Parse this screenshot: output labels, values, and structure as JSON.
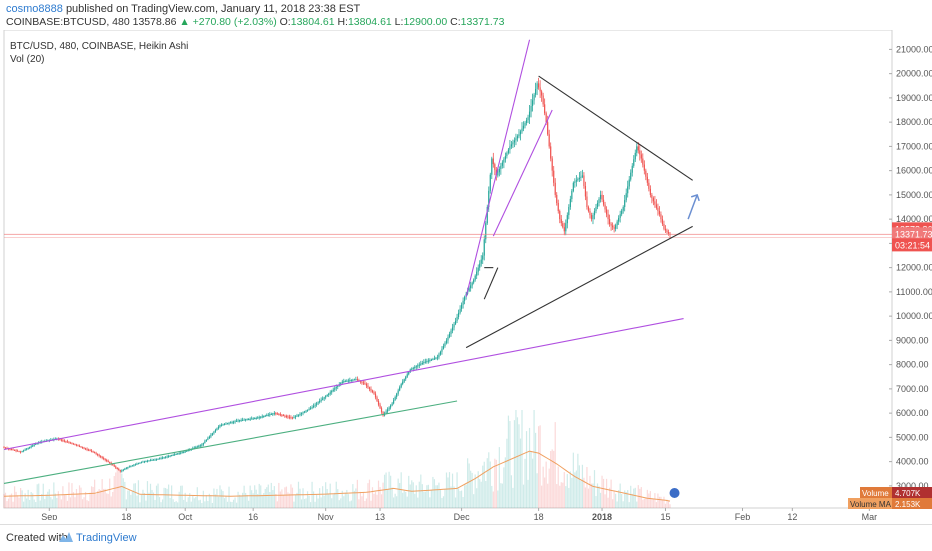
{
  "header": {
    "author": "cosmo8888",
    "published": "published on TradingView.com, January 11, 2018 23:38 EST",
    "symbol": "COINBASE:BTCUSD, 480",
    "price": "13578.86",
    "change": "▲ +270.80 (+2.03%)",
    "open_label": "O:",
    "open": "13804.61",
    "high_label": "H:",
    "high": "13804.61",
    "low_label": "L:",
    "low": "12900.00",
    "close_label": "C:",
    "close": "13371.73"
  },
  "legend": {
    "title": "BTC/USD, 480, COINBASE, Heikin Ashi",
    "vol": "Vol (20)"
  },
  "price_badges": {
    "last": "13578.86",
    "close": "13371.73",
    "timer": "03:21:54"
  },
  "vol_badges": {
    "volume_label": "Volume",
    "volume_value": "4.707K",
    "ma_label": "Volume MA",
    "ma_value": "2.153K"
  },
  "footer": {
    "created_with": "Created with",
    "brand": "TradingView"
  },
  "colors": {
    "up": "#26a69a",
    "down": "#ef5350",
    "trend_purple": "#b04fe0",
    "trend_green": "#4caf80",
    "trend_black": "#333333",
    "arrow": "#6b8fd1"
  },
  "chart_data": {
    "type": "candlestick",
    "title": "BTC/USD, 480, COINBASE, Heikin Ashi",
    "y_ticks": [
      3000,
      4000,
      5000,
      6000,
      7000,
      8000,
      9000,
      10000,
      11000,
      12000,
      13000,
      14000,
      15000,
      16000,
      17000,
      18000,
      19000,
      20000,
      21000
    ],
    "y_tick_labels": [
      "3000.00",
      "4000.00",
      "5000.00",
      "6000.00",
      "7000.00",
      "8000.00",
      "9000.00",
      "10000.00",
      "11000.00",
      "12000.00",
      "13000.00",
      "14000.00",
      "15000.00",
      "16000.00",
      "17000.00",
      "18000.00",
      "19000.00",
      "20000.00",
      "21000.00"
    ],
    "ylim": [
      2500,
      21800
    ],
    "x_ticks": [
      {
        "label": "Sep",
        "day": 10
      },
      {
        "label": "18",
        "day": 27
      },
      {
        "label": "Oct",
        "day": 40
      },
      {
        "label": "16",
        "day": 55
      },
      {
        "label": "Nov",
        "day": 71
      },
      {
        "label": "13",
        "day": 83
      },
      {
        "label": "Dec",
        "day": 101
      },
      {
        "label": "18",
        "day": 118
      },
      {
        "label": "2018",
        "day": 132
      },
      {
        "label": "15",
        "day": 146
      },
      {
        "label": "Feb",
        "day": 163
      },
      {
        "label": "12",
        "day": 174
      },
      {
        "label": "Mar",
        "day": 191
      }
    ],
    "xlim": [
      0,
      196
    ],
    "price_path": [
      [
        0,
        4600
      ],
      [
        4,
        4400
      ],
      [
        8,
        4800
      ],
      [
        12,
        4950
      ],
      [
        16,
        4700
      ],
      [
        20,
        4400
      ],
      [
        24,
        3900
      ],
      [
        26,
        3600
      ],
      [
        28,
        3800
      ],
      [
        31,
        4000
      ],
      [
        34,
        4100
      ],
      [
        37,
        4250
      ],
      [
        40,
        4400
      ],
      [
        44,
        4700
      ],
      [
        48,
        5500
      ],
      [
        52,
        5700
      ],
      [
        56,
        5800
      ],
      [
        60,
        6000
      ],
      [
        64,
        5800
      ],
      [
        68,
        6200
      ],
      [
        72,
        6800
      ],
      [
        75,
        7300
      ],
      [
        78,
        7400
      ],
      [
        80,
        7200
      ],
      [
        82,
        6800
      ],
      [
        84,
        5900
      ],
      [
        86,
        6400
      ],
      [
        88,
        7200
      ],
      [
        90,
        7800
      ],
      [
        93,
        8100
      ],
      [
        96,
        8300
      ],
      [
        98,
        9000
      ],
      [
        100,
        9800
      ],
      [
        102,
        10800
      ],
      [
        104,
        11500
      ],
      [
        106,
        12500
      ],
      [
        107,
        14500
      ],
      [
        108,
        16500
      ],
      [
        109,
        15800
      ],
      [
        110,
        16200
      ],
      [
        112,
        17000
      ],
      [
        114,
        17500
      ],
      [
        116,
        18200
      ],
      [
        118,
        19600
      ],
      [
        119,
        19100
      ],
      [
        120,
        18000
      ],
      [
        121,
        16500
      ],
      [
        122,
        15000
      ],
      [
        123,
        14000
      ],
      [
        124,
        13500
      ],
      [
        126,
        15500
      ],
      [
        128,
        15800
      ],
      [
        129,
        14500
      ],
      [
        130,
        14000
      ],
      [
        132,
        15000
      ],
      [
        134,
        13800
      ],
      [
        135,
        13600
      ],
      [
        137,
        14500
      ],
      [
        139,
        16200
      ],
      [
        140,
        17000
      ],
      [
        141,
        16500
      ],
      [
        143,
        15000
      ],
      [
        145,
        14200
      ],
      [
        146,
        13600
      ],
      [
        147,
        13400
      ]
    ],
    "volume_ma_path": [
      [
        0,
        0.12
      ],
      [
        10,
        0.13
      ],
      [
        20,
        0.15
      ],
      [
        26,
        0.22
      ],
      [
        30,
        0.14
      ],
      [
        40,
        0.13
      ],
      [
        50,
        0.12
      ],
      [
        60,
        0.13
      ],
      [
        70,
        0.14
      ],
      [
        80,
        0.16
      ],
      [
        86,
        0.2
      ],
      [
        90,
        0.17
      ],
      [
        100,
        0.2
      ],
      [
        104,
        0.3
      ],
      [
        108,
        0.42
      ],
      [
        112,
        0.5
      ],
      [
        116,
        0.58
      ],
      [
        118,
        0.56
      ],
      [
        122,
        0.45
      ],
      [
        126,
        0.32
      ],
      [
        130,
        0.22
      ],
      [
        136,
        0.16
      ],
      [
        142,
        0.1
      ],
      [
        146,
        0.08
      ],
      [
        147,
        0.07
      ]
    ],
    "trendlines": [
      {
        "from": [
          0,
          4500
        ],
        "to": [
          150,
          9900
        ],
        "color": "trend_purple"
      },
      {
        "from": [
          0,
          3100
        ],
        "to": [
          100,
          6500
        ],
        "color": "trend_green"
      },
      {
        "from": [
          102,
          10800
        ],
        "to": [
          116,
          21400
        ],
        "color": "trend_purple"
      },
      {
        "from": [
          108,
          13300
        ],
        "to": [
          121,
          18500
        ],
        "color": "trend_purple"
      },
      {
        "from": [
          102,
          8700
        ],
        "to": [
          152,
          13700
        ],
        "color": "trend_black"
      },
      {
        "from": [
          118,
          19900
        ],
        "to": [
          152,
          15600
        ],
        "color": "trend_black"
      },
      {
        "from": [
          106,
          10700
        ],
        "to": [
          109,
          12000
        ],
        "color": "trend_black"
      }
    ],
    "price_level": 13371.73,
    "last_price": 13578.86
  }
}
